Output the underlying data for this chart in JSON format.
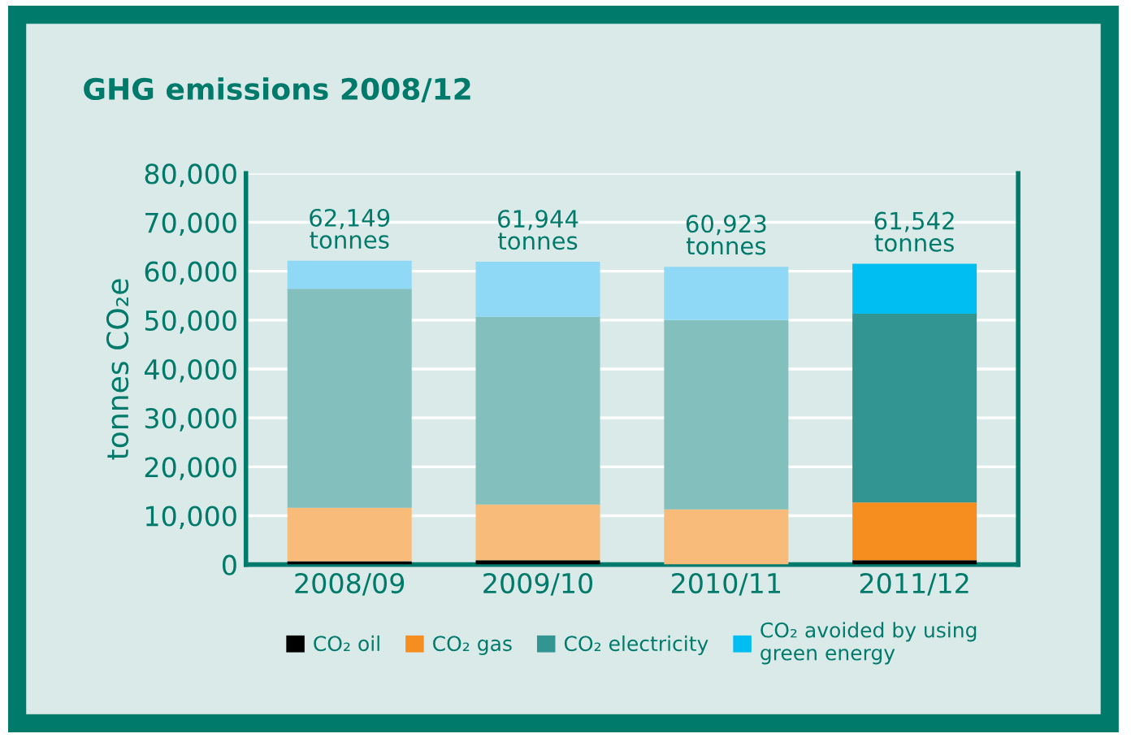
{
  "chart_data": {
    "type": "bar",
    "title": "GHG emissions 2008/12",
    "ylabel": "tonnes CO₂e",
    "categories": [
      "2008/09",
      "2009/10",
      "2010/11",
      "2011/12"
    ],
    "stacked": true,
    "series": [
      {
        "name": "CO₂ oil",
        "color": "#000000",
        "colors": [
          "#000000",
          "#000000",
          "#000000",
          "#000000"
        ],
        "values": [
          700,
          900,
          0,
          900
        ]
      },
      {
        "name": "CO₂ gas",
        "color": "#f68d1f",
        "colors": [
          "#f9bb7a",
          "#f9bb7a",
          "#f9bb7a",
          "#f68d1f"
        ],
        "values": [
          10900,
          11400,
          11300,
          11800
        ]
      },
      {
        "name": "CO₂ electricity",
        "color": "#339591",
        "colors": [
          "#83bfbc",
          "#83bfbc",
          "#83bfbc",
          "#339591"
        ],
        "values": [
          44800,
          38400,
          38700,
          38600
        ]
      },
      {
        "name": "CO₂ avoided by using\ngreen energy",
        "color": "#00bdf2",
        "colors": [
          "#8fd8f6",
          "#8fd8f6",
          "#8fd8f6",
          "#00bdf2"
        ],
        "values": [
          5749,
          11244,
          10923,
          10242
        ]
      }
    ],
    "totals": [
      "62,149\ntonnes",
      "61,944\ntonnes",
      "60,923\ntonnes",
      "61,542\ntonnes"
    ],
    "ylim": [
      0,
      80000
    ],
    "yticks": [
      {
        "value": 0,
        "label": "0"
      },
      {
        "value": 10000,
        "label": "10,000"
      },
      {
        "value": 20000,
        "label": "20,000"
      },
      {
        "value": 30000,
        "label": "30,000"
      },
      {
        "value": 40000,
        "label": "40,000"
      },
      {
        "value": 50000,
        "label": "50,000"
      },
      {
        "value": 60000,
        "label": "60,000"
      },
      {
        "value": 70000,
        "label": "70,000"
      },
      {
        "value": 80000,
        "label": "80,000"
      }
    ],
    "grid": "y",
    "legend": "bottom"
  }
}
